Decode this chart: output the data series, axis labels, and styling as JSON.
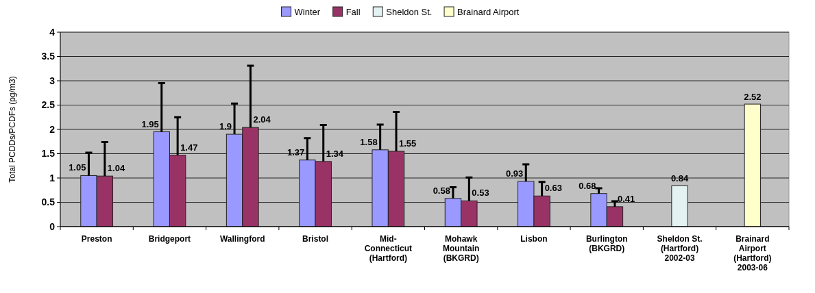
{
  "chart_data": {
    "type": "bar",
    "ylabel": "Total PCDDs/PCDFs (pg/m3)",
    "categories": [
      "Preston",
      "Bridgeport",
      "Wallingford",
      "Bristol",
      "Mid-Connecticut (Hartford)",
      "Mohawk Mountain (BKGRD)",
      "Lisbon",
      "Burlington (BKGRD)",
      "Sheldon St. (Hartford) 2002-03",
      "Brainard Airport (Hartford) 2003-06"
    ],
    "series": [
      {
        "name": "Winter",
        "color": "#9999ff",
        "values": [
          1.05,
          1.95,
          1.9,
          1.37,
          1.58,
          0.58,
          0.93,
          0.68,
          null,
          null
        ],
        "errors": [
          [
            1.05,
            1.52
          ],
          [
            1.95,
            2.95
          ],
          [
            1.9,
            2.53
          ],
          [
            1.37,
            1.82
          ],
          [
            1.58,
            2.1
          ],
          [
            0.58,
            0.81
          ],
          [
            0.93,
            1.28
          ],
          [
            0.68,
            0.79
          ],
          null,
          null
        ]
      },
      {
        "name": "Fall",
        "color": "#993366",
        "values": [
          1.04,
          1.47,
          2.04,
          1.34,
          1.55,
          0.53,
          0.63,
          0.41,
          null,
          null
        ],
        "errors": [
          [
            1.04,
            1.74
          ],
          [
            1.47,
            2.25
          ],
          [
            2.04,
            3.31
          ],
          [
            1.34,
            2.09
          ],
          [
            1.55,
            2.36
          ],
          [
            0.53,
            1.01
          ],
          [
            0.63,
            0.92
          ],
          [
            0.41,
            0.52
          ],
          null,
          null
        ]
      },
      {
        "name": "Sheldon St.",
        "color": "#e4f2f2",
        "values": [
          null,
          null,
          null,
          null,
          null,
          null,
          null,
          null,
          0.84,
          null
        ]
      },
      {
        "name": "Brainard Airport",
        "color": "#ffffcc",
        "values": [
          null,
          null,
          null,
          null,
          null,
          null,
          null,
          null,
          null,
          2.52
        ]
      }
    ],
    "ylim": [
      0,
      4
    ],
    "yticks": [
      0,
      0.5,
      1,
      1.5,
      2,
      2.5,
      3,
      3.5,
      4
    ],
    "grid": "y",
    "legend": "top",
    "data_labels": true
  }
}
